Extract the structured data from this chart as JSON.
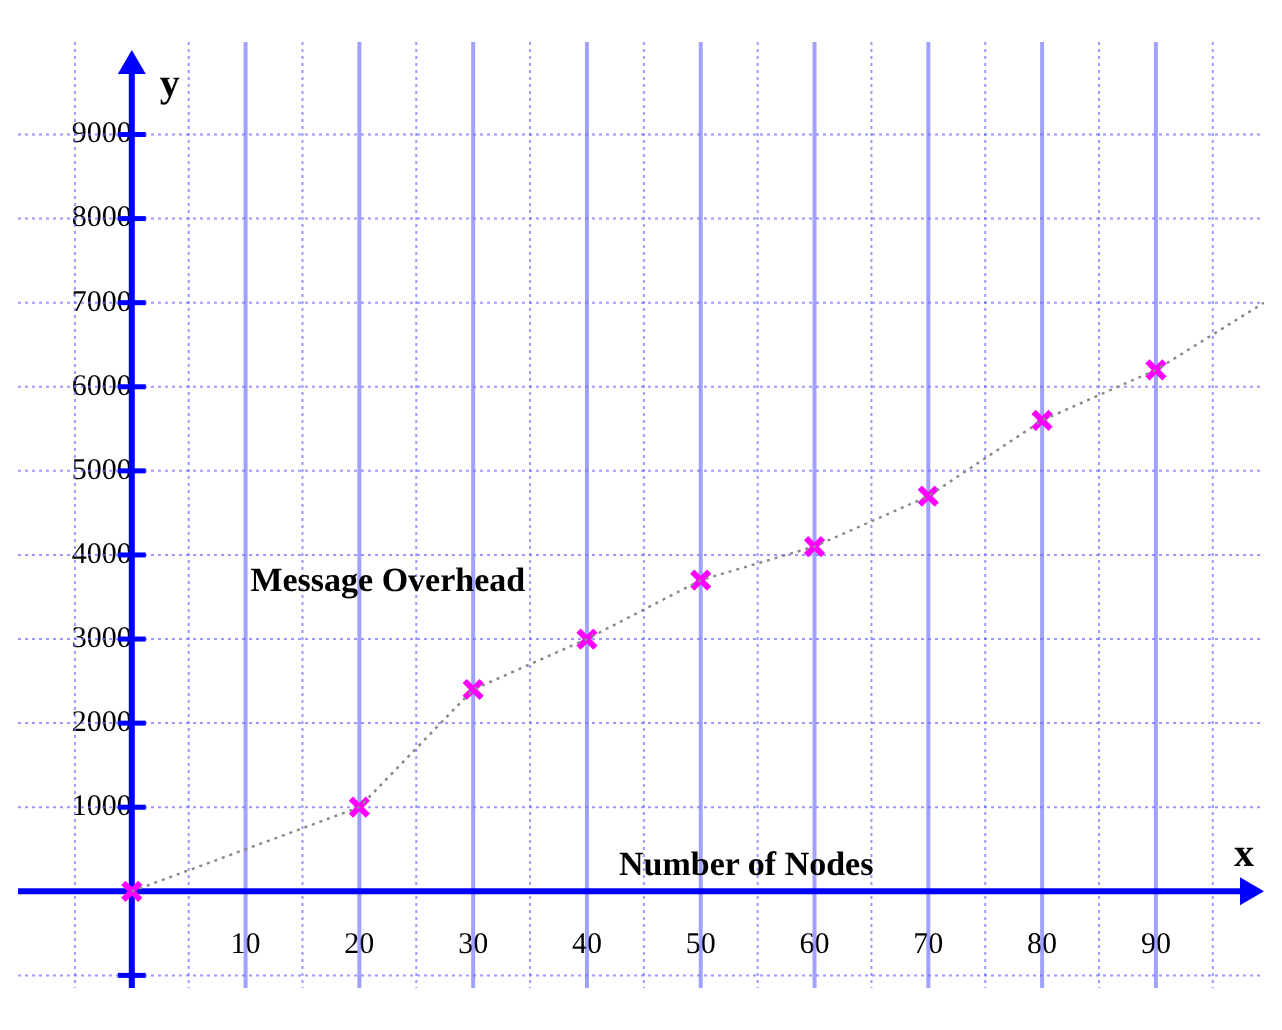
{
  "chart_data": {
    "type": "scatter",
    "xlabel": "x",
    "ylabel": "y",
    "annotations": [
      "Message Overhead",
      "Number of Nodes"
    ],
    "xlim": [
      -10,
      99.5
    ],
    "ylim": [
      -1150,
      10100
    ],
    "xticks": [
      {
        "value": -5,
        "label": null
      },
      {
        "value": 5,
        "label": null
      },
      10,
      {
        "value": 15,
        "label": null
      },
      20,
      {
        "value": 25,
        "label": null
      },
      30,
      {
        "value": 35,
        "label": null
      },
      40,
      {
        "value": 45,
        "label": null
      },
      50,
      {
        "value": 55,
        "label": null
      },
      60,
      {
        "value": 65,
        "label": null
      },
      70,
      {
        "value": 75,
        "label": null
      },
      80,
      {
        "value": 85,
        "label": null
      },
      90,
      {
        "value": 95,
        "label": null
      }
    ],
    "yticks": [
      {
        "value": -1000,
        "label": null
      },
      1000,
      2000,
      3000,
      4000,
      5000,
      6000,
      7000,
      8000,
      9000
    ],
    "grid": true,
    "legend": false,
    "series": [
      {
        "marker": "cross",
        "color": "#ff00ff",
        "x": [
          0,
          20,
          30,
          40,
          50,
          60,
          70,
          80,
          90
        ],
        "values": [
          0,
          1000,
          2400,
          3000,
          3700,
          4100,
          4700,
          5600,
          6200
        ]
      },
      {
        "type": "line",
        "marker": "none",
        "line_style": "dotted",
        "color": "#888888",
        "x": [
          0,
          20,
          30,
          40,
          50,
          60,
          70,
          80,
          90,
          99.5
        ],
        "values": [
          0,
          1000,
          2400,
          3000,
          3700,
          4100,
          4700,
          5600,
          6200,
          7000
        ]
      }
    ]
  }
}
